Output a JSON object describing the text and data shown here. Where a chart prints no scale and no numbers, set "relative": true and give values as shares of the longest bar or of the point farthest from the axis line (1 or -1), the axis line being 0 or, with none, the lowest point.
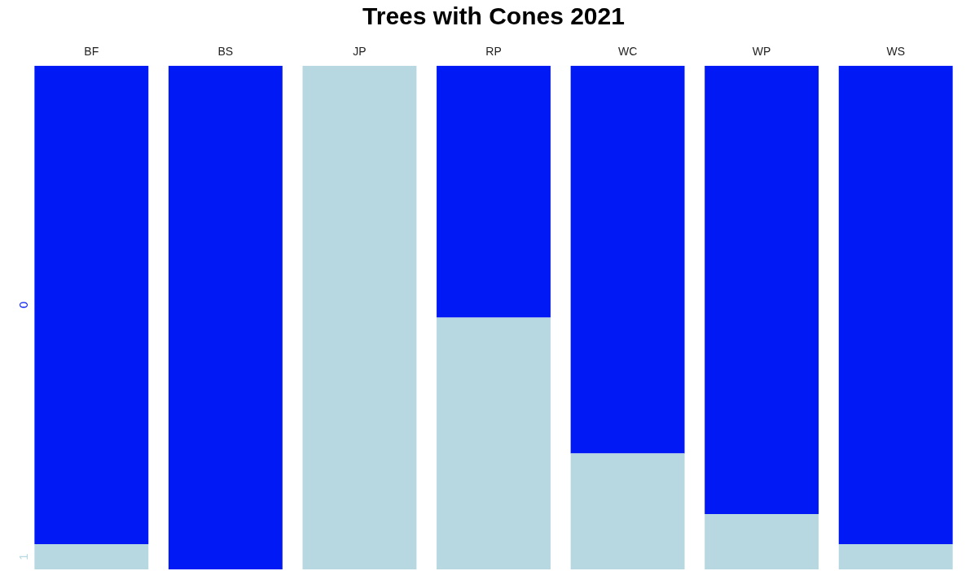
{
  "chart_data": {
    "type": "bar",
    "title": "Trees with Cones 2021",
    "categories": [
      "BF",
      "BS",
      "JP",
      "RP",
      "WC",
      "WP",
      "WS"
    ],
    "stacked": true,
    "relative": true,
    "legend": false,
    "grid": false,
    "series": [
      {
        "name": "1",
        "color": "#b7d7e1",
        "values": [
          0.05,
          0,
          1,
          0.5,
          0.23,
          0.11,
          0.05
        ]
      },
      {
        "name": "0",
        "color": "#0019f5",
        "values": [
          0.95,
          1,
          0,
          0.5,
          0.77,
          0.89,
          0.95
        ]
      }
    ]
  }
}
